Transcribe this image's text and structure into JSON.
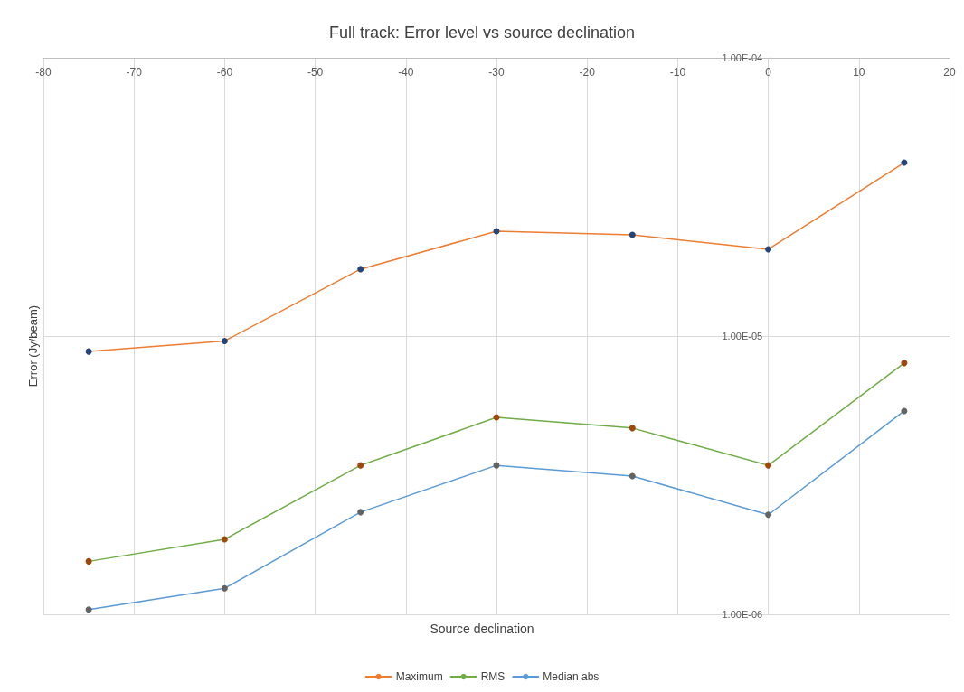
{
  "chart_data": {
    "type": "line",
    "title": "Full track: Error level vs source declination",
    "xlabel": "Source declination",
    "ylabel": "Error (Jy/beam)",
    "x": [
      -75,
      -60,
      -45,
      -30,
      -15,
      0,
      15
    ],
    "series": [
      {
        "name": "Maximum",
        "color": "#ed7d31",
        "colors": [
          "#264478",
          "#264478",
          "#264478",
          "#264478",
          "#264478",
          "#264478",
          "#264478"
        ],
        "values": [
          8.8e-06,
          9.6e-06,
          1.74e-05,
          2.38e-05,
          2.31e-05,
          2.05e-05,
          4.2e-05
        ]
      },
      {
        "name": "RMS",
        "color": "#70ad47",
        "colors": [
          "#9e480e",
          "#9e480e",
          "#9e480e",
          "#9e480e",
          "#9e480e",
          "#9e480e",
          "#9e480e"
        ],
        "values": [
          1.55e-06,
          1.86e-06,
          3.43e-06,
          5.1e-06,
          4.67e-06,
          3.43e-06,
          8e-06
        ]
      },
      {
        "name": "Median abs",
        "color": "#5b9bd5",
        "colors": [
          "#636363",
          "#636363",
          "#636363",
          "#636363",
          "#636363",
          "#636363",
          "#636363"
        ],
        "values": [
          1.04e-06,
          1.24e-06,
          2.33e-06,
          3.43e-06,
          3.14e-06,
          2.28e-06,
          5.38e-06
        ]
      }
    ],
    "xlim": [
      -80,
      20
    ],
    "xticks": [
      -80,
      -70,
      -60,
      -50,
      -40,
      -30,
      -20,
      -10,
      0,
      10,
      20
    ],
    "ylim": [
      1e-06,
      0.0001
    ],
    "yticks": [
      {
        "value": 1e-06,
        "label": "1.00E-06"
      },
      {
        "value": 1e-05,
        "label": "1.00E-05"
      },
      {
        "value": 0.0001,
        "label": "1.00E-04"
      }
    ],
    "log": true,
    "grid": true,
    "legend": "bottom",
    "marker": "circle",
    "line_style": "solid"
  }
}
